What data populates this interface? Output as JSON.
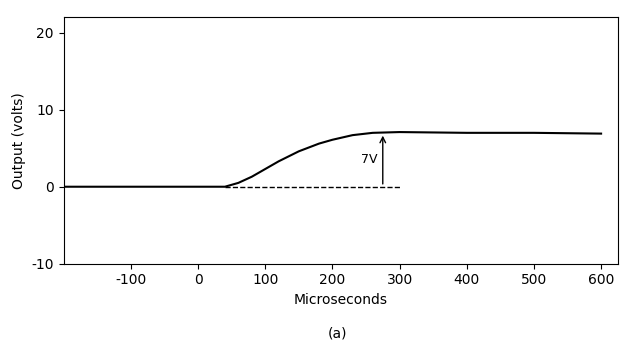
{
  "chart_data": {
    "type": "line",
    "x_label": "Microseconds",
    "y_label": "Output (volts)",
    "caption": "(a)",
    "xlim": [
      -200,
      625
    ],
    "ylim": [
      -10,
      22
    ],
    "xticks": [
      -100,
      0,
      100,
      200,
      300,
      400,
      500,
      600
    ],
    "yticks": [
      -10,
      0,
      10,
      20
    ],
    "grid": false,
    "series": [
      {
        "color": "#000000",
        "line_style": "solid",
        "x": [
          -200,
          -100,
          0,
          40,
          60,
          80,
          100,
          120,
          150,
          180,
          200,
          230,
          260,
          300,
          400,
          500,
          600
        ],
        "values": [
          0,
          0,
          0,
          0,
          0.5,
          1.3,
          2.3,
          3.3,
          4.6,
          5.6,
          6.1,
          6.7,
          7.0,
          7.1,
          7.0,
          7.0,
          6.9
        ]
      },
      {
        "color": "#000000",
        "line_style": "dashed",
        "x": [
          40,
          300
        ],
        "values": [
          0,
          0
        ]
      }
    ],
    "annotations": [
      {
        "text": "7V",
        "x": 275,
        "y_from": 0,
        "y_to": 7
      }
    ]
  }
}
